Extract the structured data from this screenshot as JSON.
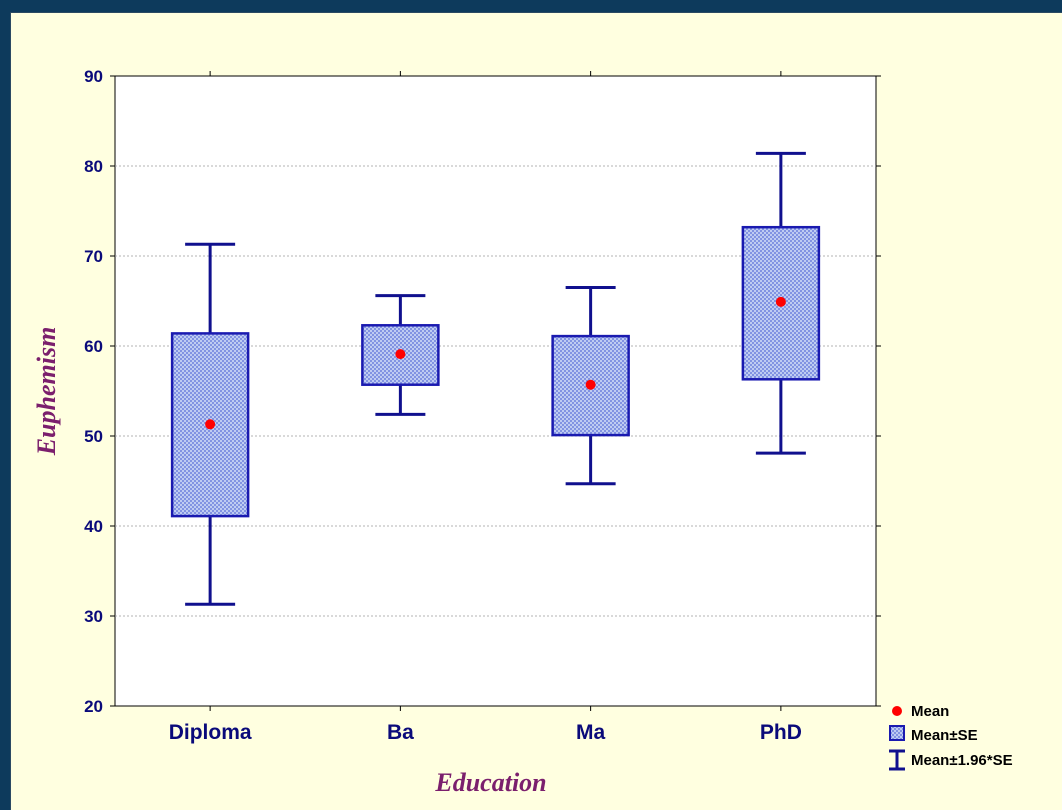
{
  "chart_data": {
    "type": "box",
    "xlabel": "Education",
    "ylabel": "Euphemism",
    "ylim": [
      20,
      90
    ],
    "yticks": [
      20,
      30,
      40,
      50,
      60,
      70,
      80,
      90
    ],
    "grid": true,
    "legend_position": "bottom-right",
    "categories": [
      "Diploma",
      "Ba",
      "Ma",
      "PhD"
    ],
    "boxes": [
      {
        "category": "Diploma",
        "mean": 51.3,
        "se_low": 41.1,
        "se_high": 61.4,
        "ci_low": 31.3,
        "ci_high": 71.3
      },
      {
        "category": "Ba",
        "mean": 59.1,
        "se_low": 55.7,
        "se_high": 62.3,
        "ci_low": 52.4,
        "ci_high": 65.6
      },
      {
        "category": "Ma",
        "mean": 55.7,
        "se_low": 50.1,
        "se_high": 61.1,
        "ci_low": 44.7,
        "ci_high": 66.5
      },
      {
        "category": "PhD",
        "mean": 64.9,
        "se_low": 56.3,
        "se_high": 73.2,
        "ci_low": 48.1,
        "ci_high": 81.4
      }
    ],
    "legend": [
      {
        "label": "Mean",
        "symbol": "dot"
      },
      {
        "label": "Mean±SE",
        "symbol": "box"
      },
      {
        "label": "Mean±1.96*SE",
        "symbol": "whisker"
      }
    ],
    "colors": {
      "box_fill": "#c7d3f4",
      "box_stroke": "#1a1ab0",
      "whisker": "#10108e",
      "mean_dot": "#ff0000",
      "axis_text": "#0a0a7a",
      "axis_title": "#7b1f6d",
      "frame_bg": "#ffffe0",
      "outer_bg": "#0d3a5c"
    }
  }
}
